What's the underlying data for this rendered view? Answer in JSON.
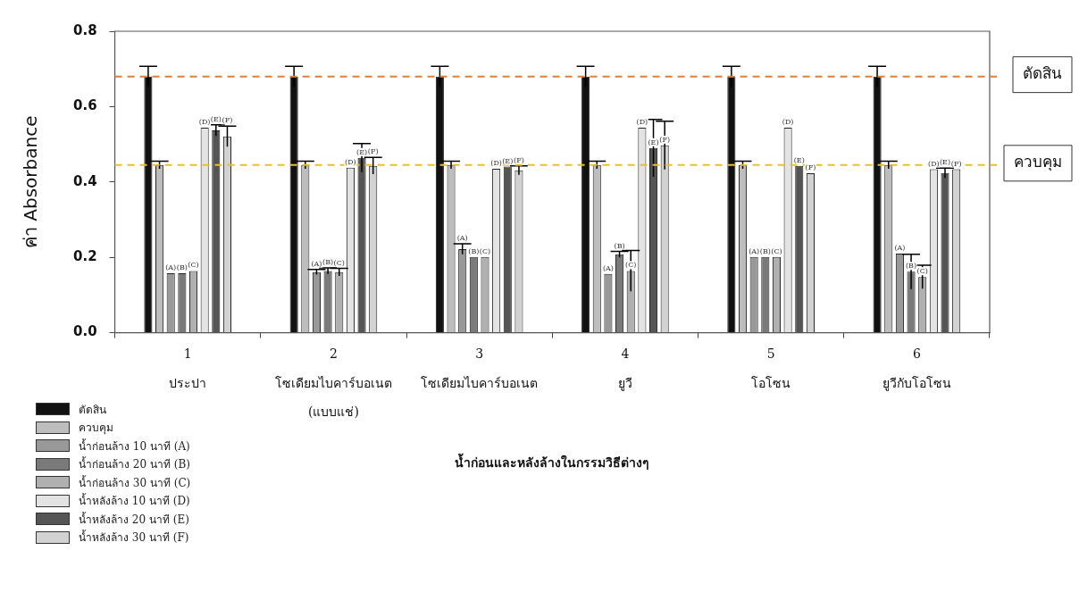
{
  "chart_data": {
    "type": "bar",
    "xlabel": "น้ำก่อนและหลังล้างในกรรมวิธีต่างๆ",
    "ylabel": "ค่า Absorbance",
    "categories": [
      "1\nประปา",
      "2\nโซเดียมไบคาร์บอเนต\n(แบบแช่)",
      "3\nโซเดียมไบคาร์บอเนต",
      "4\nยูวี",
      "5\nโอโซน",
      "6\nยูวีกับโอโซน"
    ],
    "ylim": [
      0,
      0.8
    ],
    "yticks": [
      {
        "value": 0,
        "label": "0.0"
      },
      {
        "value": 0.2,
        "label": "0.2"
      },
      {
        "value": 0.4,
        "label": "0.4"
      },
      {
        "value": 0.6,
        "label": "0.6"
      },
      {
        "value": 0.8,
        "label": "0.8"
      }
    ],
    "grid": false,
    "legend": "bottom left",
    "series": [
      {
        "name": "ตัดสิน",
        "color": "#111111",
        "values": [
          0.68,
          0.68,
          0.68,
          0.68,
          0.68,
          0.68
        ],
        "errors": [
          0.027,
          0.027,
          0.027,
          0.027,
          0.027,
          0.027
        ]
      },
      {
        "name": "ควบคุม",
        "color": "#bdbdbd",
        "values": [
          0.445,
          0.445,
          0.445,
          0.445,
          0.445,
          0.445
        ],
        "errors": [
          0.01,
          0.01,
          0.01,
          0.01,
          0.01,
          0.01
        ]
      },
      {
        "name": "น้ำก่อนล้าง 10 นาที (A)",
        "color": "#999999",
        "values": [
          0.158,
          0.161,
          0.222,
          0.156,
          0.201,
          0.21
        ],
        "errors": [
          null,
          0.007,
          0.014,
          null,
          null,
          null
        ],
        "value_labels": [
          "(A)",
          "(A)",
          "(A)",
          "(A)",
          "(A)",
          "(A)"
        ]
      },
      {
        "name": "น้ำก่อนล้าง 20 นาที (B)",
        "color": "#7a7a7a",
        "values": [
          0.158,
          0.164,
          0.201,
          0.208,
          0.201,
          0.162
        ],
        "errors": [
          null,
          0.008,
          null,
          0.008,
          null,
          0.046
        ],
        "value_labels": [
          "(B)",
          "(B)",
          "(B)",
          "(B)",
          "(B)",
          "(B)"
        ]
      },
      {
        "name": "น้ำก่อนล้าง 30 นาที (C)",
        "color": "#b0b0b0",
        "values": [
          0.164,
          0.161,
          0.201,
          0.164,
          0.201,
          0.148
        ],
        "errors": [
          null,
          0.01,
          null,
          0.054,
          null,
          0.031
        ],
        "value_labels": [
          "(C)",
          "(C)",
          "(C)",
          "(C)",
          "(C)",
          "(C)"
        ]
      },
      {
        "name": "น้ำหลังล้าง 10 นาที (D)",
        "color": "#e3e3e3",
        "values": [
          0.544,
          0.438,
          0.435,
          0.544,
          0.544,
          0.434
        ],
        "value_labels": [
          "(D)",
          "(D)",
          "(D)",
          "(D)",
          "(D)",
          "(D)"
        ]
      },
      {
        "name": "น้ำหลังล้าง 20 นาที (E)",
        "color": "#555555",
        "values": [
          0.537,
          0.464,
          0.441,
          0.49,
          0.443,
          0.424
        ],
        "errors": [
          0.015,
          0.038,
          null,
          0.076,
          null,
          0.013
        ],
        "value_labels": [
          "(E)",
          "(E)",
          "(E)",
          "(E)",
          "(E)",
          "(E)"
        ]
      },
      {
        "name": "น้ำหลังล้าง 30 นาที (F)",
        "color": "#d2d2d2",
        "values": [
          0.521,
          0.443,
          0.431,
          0.497,
          0.423,
          0.434
        ],
        "errors": [
          0.027,
          0.022,
          0.012,
          0.064,
          null,
          null
        ],
        "value_labels": [
          "(F)",
          "(F)",
          "(F)",
          "(F)",
          "(F)",
          "(F)"
        ]
      }
    ],
    "ref_lines": [
      {
        "axis": "y",
        "value": 0.68,
        "label": "ตัดสิน",
        "color": "#e0803a",
        "line_style": "dashed"
      },
      {
        "axis": "y",
        "value": 0.445,
        "label": "ควบคุม",
        "color": "#e3c22e",
        "line_style": "dashed"
      }
    ]
  }
}
